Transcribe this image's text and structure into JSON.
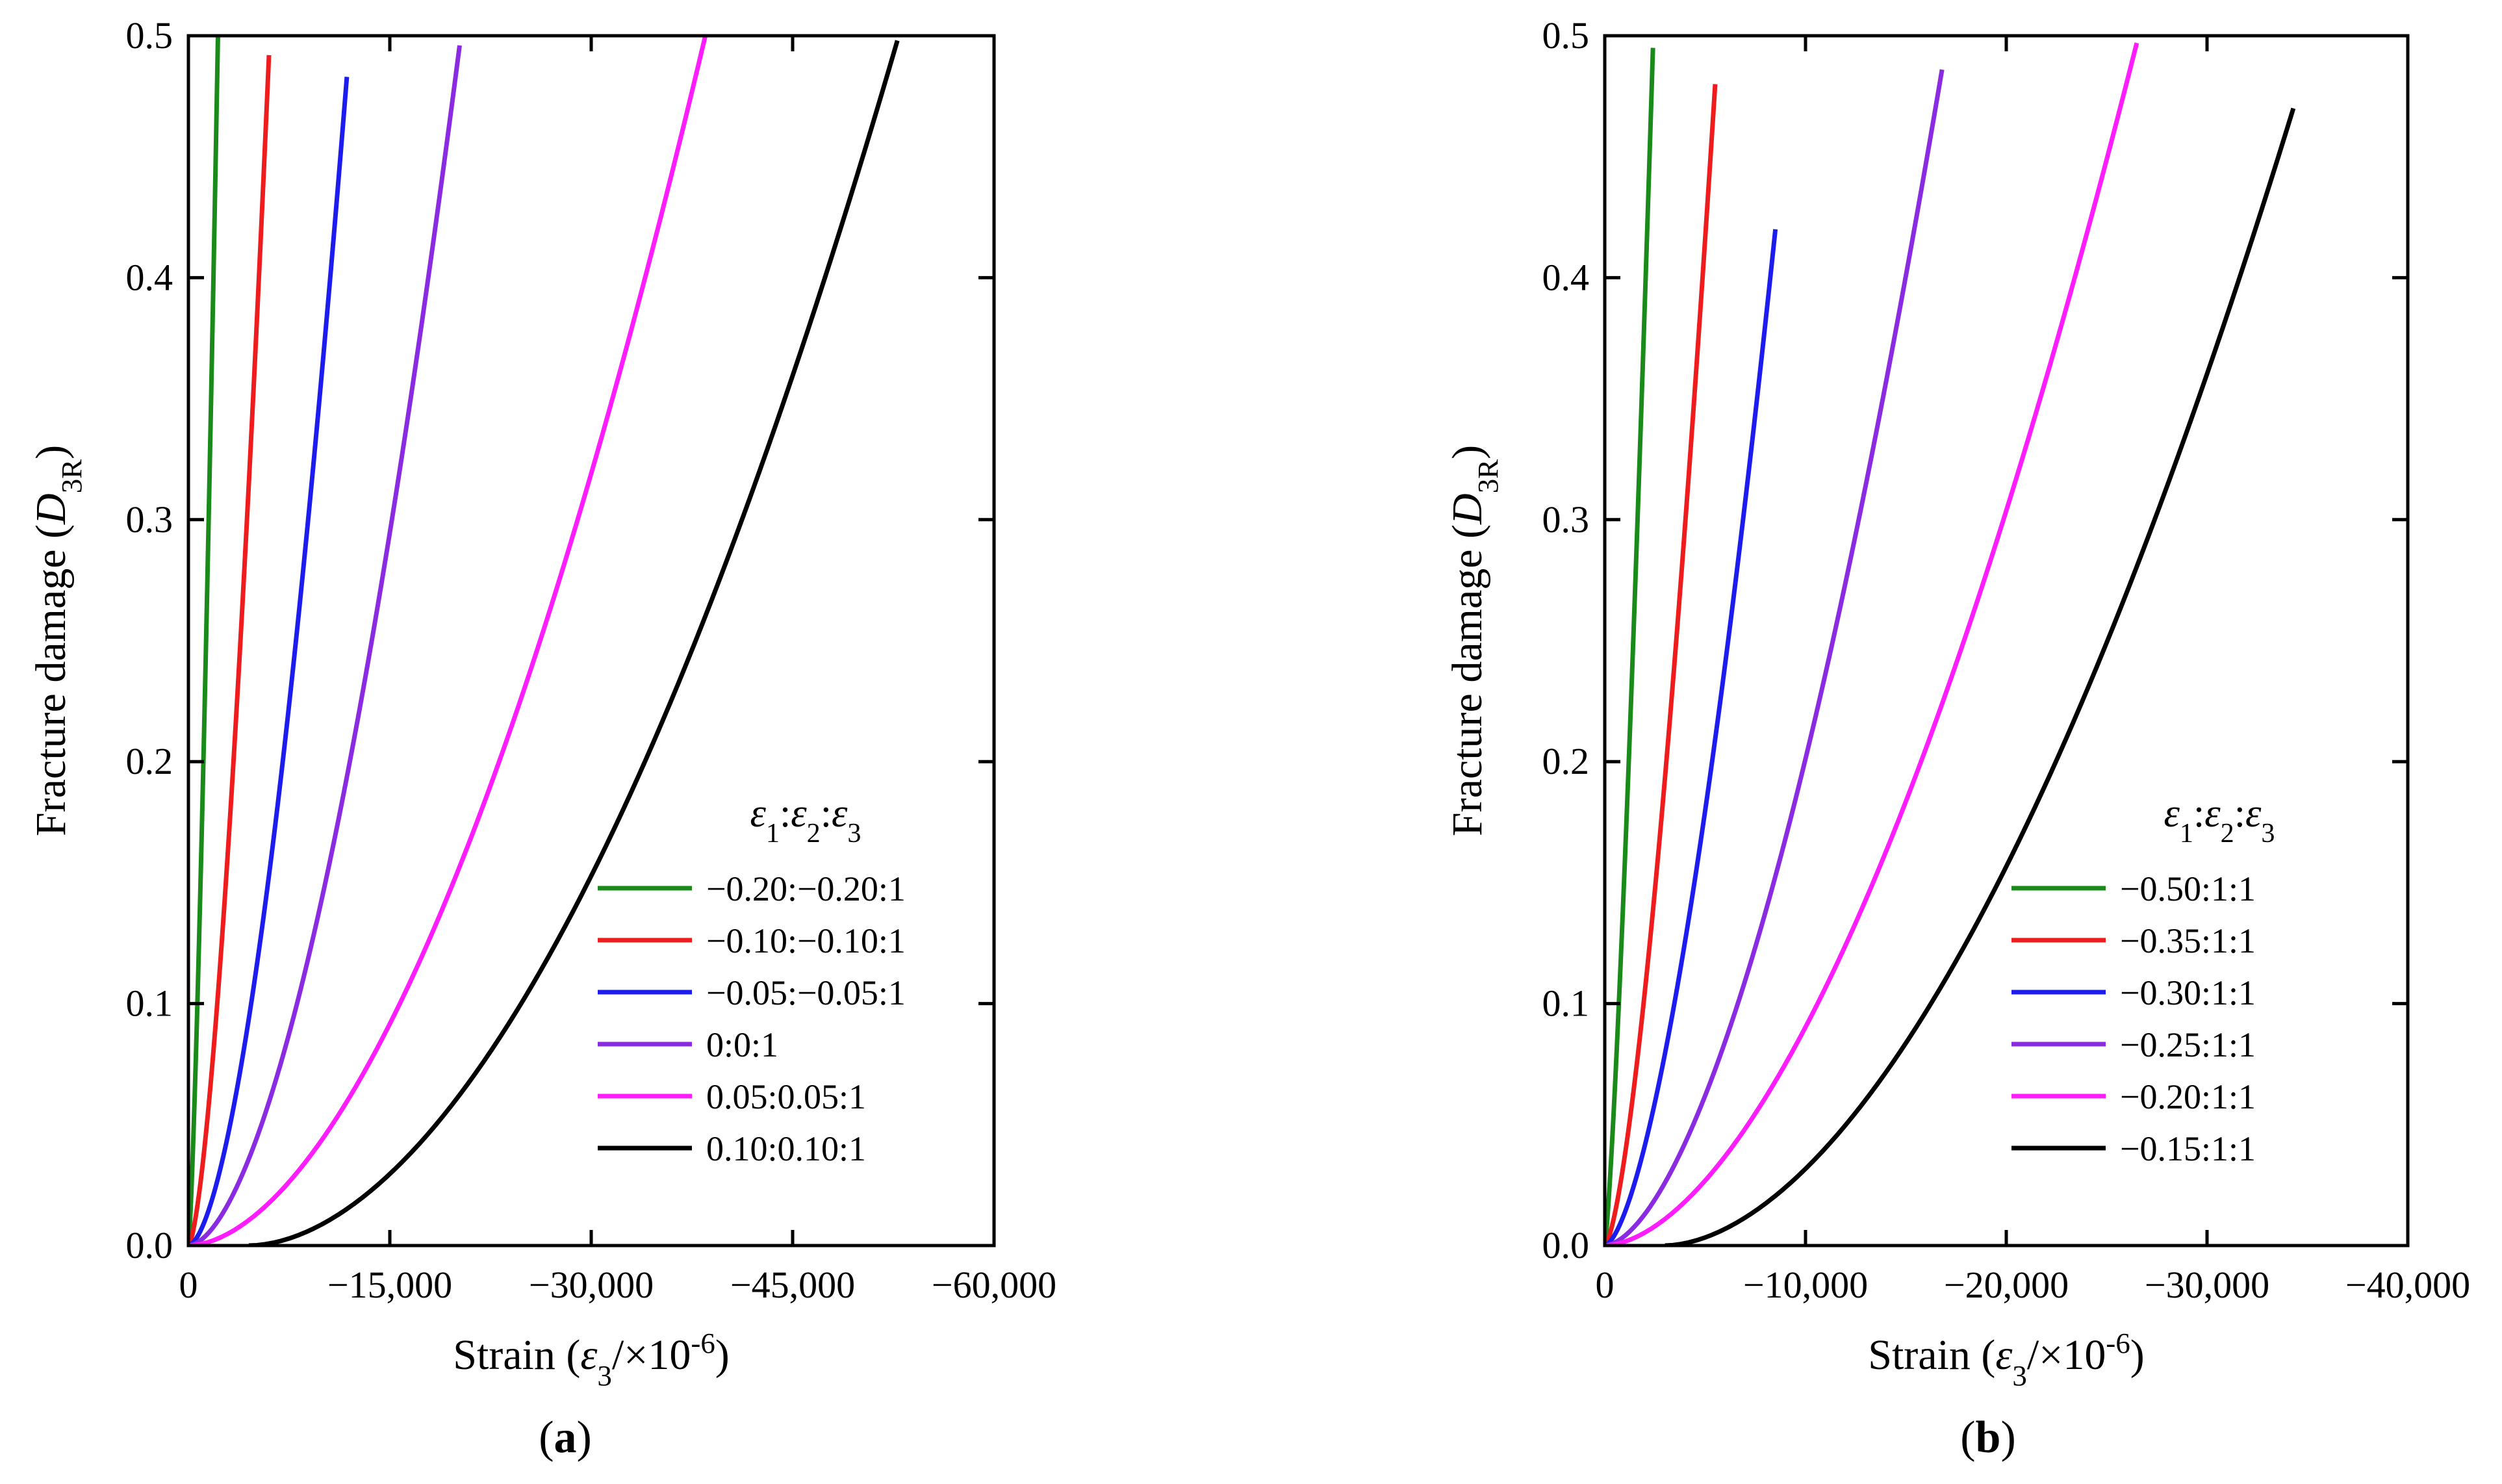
{
  "chart_data": [
    {
      "panel_label": "(a)",
      "type": "line",
      "xlabel": "Strain (ε3/×10-6)",
      "ylabel": "Fracture damage (D3R)",
      "xlim": [
        0,
        -60000
      ],
      "ylim": [
        0,
        0.5
      ],
      "xticks": [
        0,
        -15000,
        -30000,
        -45000,
        -60000
      ],
      "xtick_labels": [
        "0",
        "−15,000",
        "−30,000",
        "−45,000",
        "−60,000"
      ],
      "yticks": [
        0,
        0.1,
        0.2,
        0.3,
        0.4,
        0.5
      ],
      "ytick_labels": [
        "0.0",
        "0.1",
        "0.2",
        "0.3",
        "0.4",
        "0.5"
      ],
      "legend_title": "ε1:ε2:ε3",
      "legend_position": "bottom-right",
      "grid": false,
      "series": [
        {
          "name": "−0.20:−0.20:1",
          "color": "#1a8a1a",
          "start": 0,
          "end": -2200,
          "end_value": 0.5,
          "exponent": 1.35
        },
        {
          "name": "−0.10:−0.10:1",
          "color": "#ee1c1c",
          "start": 0,
          "end": -6000,
          "end_value": 0.492,
          "exponent": 1.55
        },
        {
          "name": "−0.05:−0.05:1",
          "color": "#1c1cee",
          "start": 0,
          "end": -11800,
          "end_value": 0.483,
          "exponent": 1.7
        },
        {
          "name": "0:0:1",
          "color": "#8a2be2",
          "start": 0,
          "end": -20200,
          "end_value": 0.496,
          "exponent": 1.75
        },
        {
          "name": "0.05:0.05:1",
          "color": "#ff1cff",
          "start": 0,
          "end": -38500,
          "end_value": 0.5,
          "exponent": 1.8
        },
        {
          "name": "0.10:0.10:1",
          "color": "#000000",
          "start": -4500,
          "end": -52800,
          "end_value": 0.498,
          "exponent": 1.85
        }
      ]
    },
    {
      "panel_label": "(b)",
      "type": "line",
      "xlabel": "Strain (ε3/×10-6)",
      "ylabel": "Fracture damage (D3R)",
      "xlim": [
        0,
        -40000
      ],
      "ylim": [
        0,
        0.5
      ],
      "xticks": [
        0,
        -10000,
        -20000,
        -30000,
        -40000
      ],
      "xtick_labels": [
        "0",
        "−10,000",
        "−20,000",
        "−30,000",
        "−40,000"
      ],
      "yticks": [
        0,
        0.1,
        0.2,
        0.3,
        0.4,
        0.5
      ],
      "ytick_labels": [
        "0.0",
        "0.1",
        "0.2",
        "0.3",
        "0.4",
        "0.5"
      ],
      "legend_title": "ε1:ε2:ε3",
      "legend_position": "bottom-right",
      "grid": false,
      "series": [
        {
          "name": "−0.50:1:1",
          "color": "#1a8a1a",
          "start": 0,
          "end": -2400,
          "end_value": 0.495,
          "exponent": 1.3
        },
        {
          "name": "−0.35:1:1",
          "color": "#ee1c1c",
          "start": 0,
          "end": -5500,
          "end_value": 0.48,
          "exponent": 1.5
        },
        {
          "name": "−0.30:1:1",
          "color": "#1c1cee",
          "start": 0,
          "end": -8500,
          "end_value": 0.42,
          "exponent": 1.6
        },
        {
          "name": "−0.25:1:1",
          "color": "#8a2be2",
          "start": 0,
          "end": -16800,
          "end_value": 0.486,
          "exponent": 1.7
        },
        {
          "name": "−0.20:1:1",
          "color": "#ff1cff",
          "start": 0,
          "end": -26500,
          "end_value": 0.497,
          "exponent": 1.75
        },
        {
          "name": "−0.15:1:1",
          "color": "#000000",
          "start": -3000,
          "end": -34300,
          "end_value": 0.47,
          "exponent": 1.8
        }
      ]
    }
  ]
}
